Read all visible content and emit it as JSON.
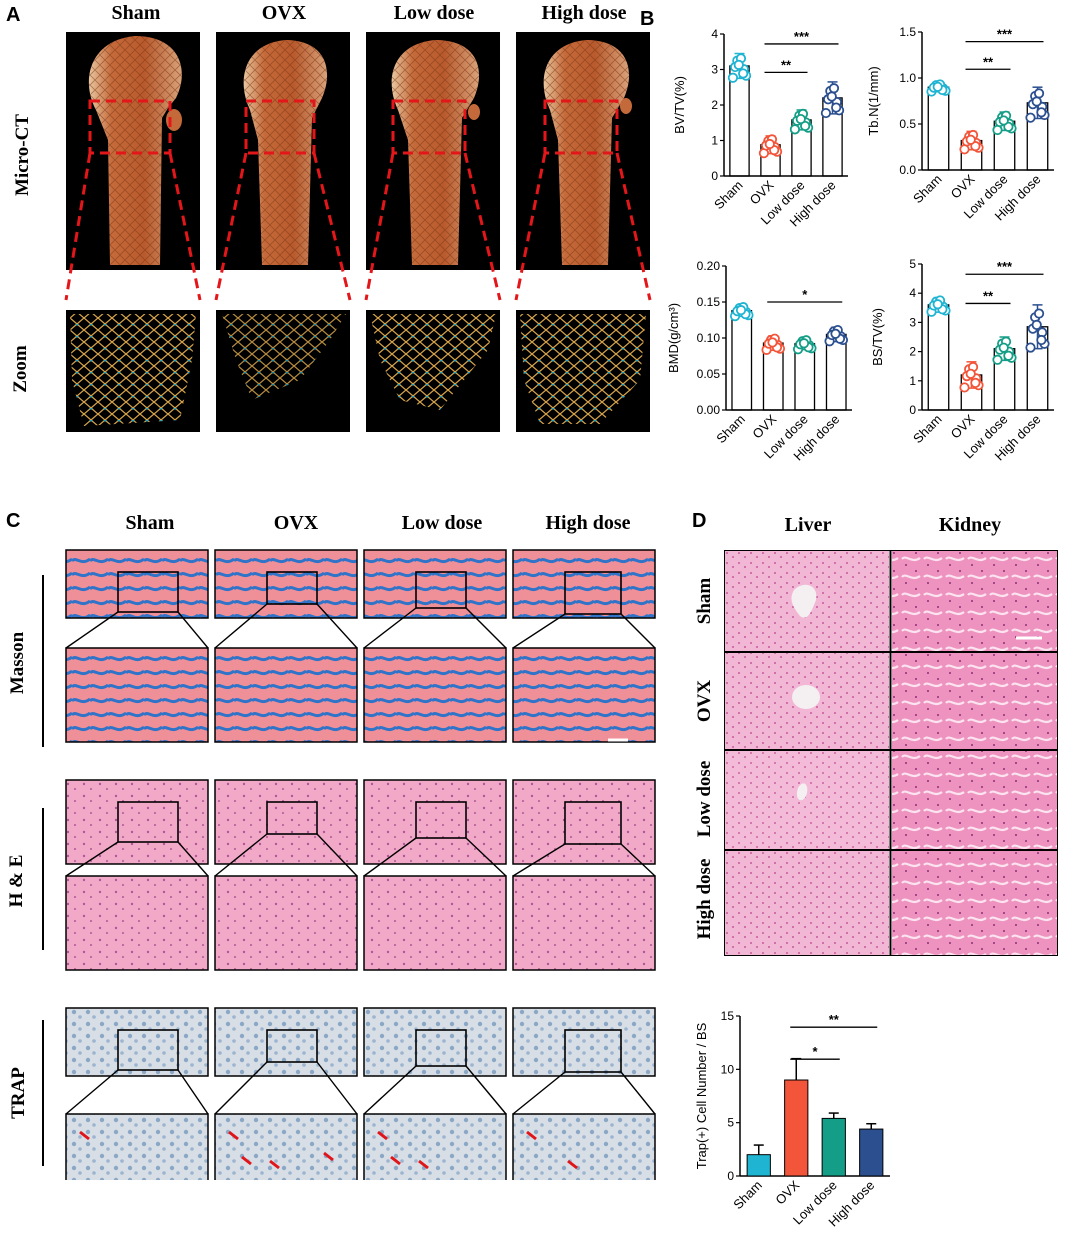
{
  "panels": {
    "a": "A",
    "b": "B",
    "c": "C",
    "d": "D"
  },
  "groups": [
    "Sham",
    "OVX",
    "Low dose",
    "High dose"
  ],
  "panel_a": {
    "row_labels": [
      "Micro-CT",
      "Zoom"
    ]
  },
  "panel_c": {
    "row_labels": [
      "Masson",
      "H & E",
      "TRAP"
    ]
  },
  "panel_d": {
    "columns": [
      "Liver",
      "Kidney"
    ],
    "rows": [
      "Sham",
      "OVX",
      "Low dose",
      "High dose"
    ]
  },
  "colors": {
    "sham": "#1fb4d2",
    "ovx": "#f2553a",
    "low": "#159e87",
    "high": "#2b4f8f",
    "masson_blue": "#2f74c8",
    "masson_red": "#ef8a92",
    "he_pink": "#ef9fc2",
    "trap_bg": "#cdd6e0",
    "trap_arrow": "#e0151a"
  },
  "chart_data": [
    {
      "type": "bar",
      "ylabel": "BV/TV(%)",
      "categories": [
        "Sham",
        "OVX",
        "Low dose",
        "High dose"
      ],
      "values": [
        3.1,
        0.88,
        1.58,
        2.2
      ],
      "errors": [
        0.35,
        0.25,
        0.28,
        0.45
      ],
      "ylim": [
        0,
        4
      ],
      "yticks": [
        "0",
        "1",
        "2",
        "3",
        "4"
      ],
      "significance": [
        {
          "from": 1,
          "to": 2,
          "label": "**"
        },
        {
          "from": 1,
          "to": 3,
          "label": "***"
        }
      ]
    },
    {
      "type": "bar",
      "ylabel": "Tb.N(1/mm)",
      "categories": [
        "Sham",
        "OVX",
        "Low dose",
        "High dose"
      ],
      "values": [
        0.9,
        0.32,
        0.53,
        0.73
      ],
      "errors": [
        0.05,
        0.1,
        0.1,
        0.17
      ],
      "ylim": [
        0,
        1.5
      ],
      "yticks": [
        "0.0",
        "0.5",
        "1.0",
        "1.5"
      ],
      "significance": [
        {
          "from": 1,
          "to": 2,
          "label": "**"
        },
        {
          "from": 1,
          "to": 3,
          "label": "***"
        }
      ]
    },
    {
      "type": "bar",
      "ylabel": "BMD(g/cm³)",
      "categories": [
        "Sham",
        "OVX",
        "Low dose",
        "High dose"
      ],
      "values": [
        0.138,
        0.093,
        0.092,
        0.105
      ],
      "errors": [
        0.008,
        0.01,
        0.008,
        0.01
      ],
      "ylim": [
        0,
        0.2
      ],
      "yticks": [
        "0.00",
        "0.05",
        "0.10",
        "0.15",
        "0.20"
      ],
      "significance": [
        {
          "from": 1,
          "to": 3,
          "label": "*"
        }
      ]
    },
    {
      "type": "bar",
      "ylabel": "BS/TV(%)",
      "categories": [
        "Sham",
        "OVX",
        "Low dose",
        "High dose"
      ],
      "values": [
        3.6,
        1.2,
        2.1,
        2.85
      ],
      "errors": [
        0.25,
        0.45,
        0.4,
        0.75
      ],
      "ylim": [
        0,
        5
      ],
      "yticks": [
        "0",
        "1",
        "2",
        "3",
        "4",
        "5"
      ],
      "significance": [
        {
          "from": 1,
          "to": 2,
          "label": "**"
        },
        {
          "from": 1,
          "to": 3,
          "label": "***"
        }
      ]
    },
    {
      "type": "bar",
      "ylabel": "Trap(+) Cell Number / BS",
      "categories": [
        "Sham",
        "OVX",
        "Low dose",
        "High dose"
      ],
      "values": [
        2.0,
        9.0,
        5.4,
        4.4
      ],
      "errors": [
        0.9,
        2.0,
        0.5,
        0.5
      ],
      "ylim": [
        0,
        15
      ],
      "yticks": [
        "0",
        "5",
        "10",
        "15"
      ],
      "significance": [
        {
          "from": 1,
          "to": 2,
          "label": "*"
        },
        {
          "from": 1,
          "to": 3,
          "label": "**"
        }
      ]
    }
  ]
}
